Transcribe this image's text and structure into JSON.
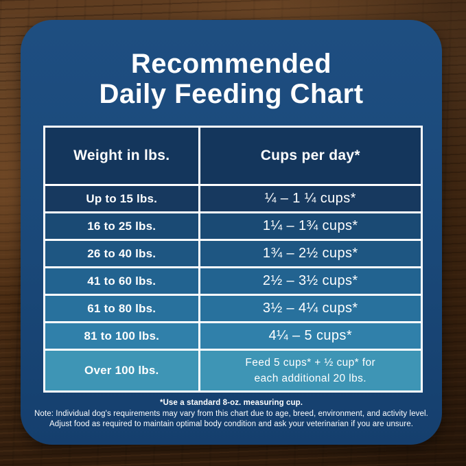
{
  "title": {
    "line1": "Recommended",
    "line2": "Daily Feeding Chart"
  },
  "table": {
    "header_bg": "#14365c",
    "border_color": "#ffffff",
    "headers": {
      "weight": "Weight in lbs.",
      "cups": "Cups per day*"
    },
    "rows": [
      {
        "weight": "Up to 15 lbs.",
        "cups": "¼ – 1 ¼ cups*",
        "bg": "#17395f"
      },
      {
        "weight": "16 to 25 lbs.",
        "cups": "1¼ – 1¾ cups*",
        "bg": "#1a4a74"
      },
      {
        "weight": "26 to 40 lbs.",
        "cups": "1¾ – 2½ cups*",
        "bg": "#1e5682"
      },
      {
        "weight": "41 to 60 lbs.",
        "cups": "2½ – 3½ cups*",
        "bg": "#226390"
      },
      {
        "weight": "61 to 80 lbs.",
        "cups": "3½ – 4¼ cups*",
        "bg": "#28719d"
      },
      {
        "weight": "81 to 100 lbs.",
        "cups": "4¼ – 5 cups*",
        "bg": "#3080aa"
      },
      {
        "weight": "Over 100 lbs.",
        "cups": "Feed 5 cups* + ½ cup* for\neach additional 20 lbs.",
        "bg": "#3e95b5"
      }
    ]
  },
  "footnotes": {
    "measuring_cup": "*Use a standard 8-oz. measuring cup.",
    "note_line1": "Note: Individual dog's requirements may vary from this chart due to age, breed, environment, and activity level.",
    "note_line2": "Adjust food as required to maintain optimal body condition and ask your veterinarian if you are unsure."
  },
  "colors": {
    "card_bg": "#1a4878",
    "text": "#ffffff"
  },
  "chart_data": {
    "type": "table",
    "title": "Recommended Daily Feeding Chart",
    "columns": [
      "Weight in lbs.",
      "Cups per day*"
    ],
    "rows": [
      [
        "Up to 15 lbs.",
        "¼ – 1 ¼ cups*"
      ],
      [
        "16 to 25 lbs.",
        "1¼ – 1¾ cups*"
      ],
      [
        "26 to 40 lbs.",
        "1¾ – 2½ cups*"
      ],
      [
        "41 to 60 lbs.",
        "2½ – 3½ cups*"
      ],
      [
        "61 to 80 lbs.",
        "3½ – 4¼ cups*"
      ],
      [
        "81 to 100 lbs.",
        "4¼ – 5 cups*"
      ],
      [
        "Over 100 lbs.",
        "Feed 5 cups* + ½ cup* for each additional 20 lbs."
      ]
    ],
    "footnote": "*Use a standard 8-oz. measuring cup."
  }
}
